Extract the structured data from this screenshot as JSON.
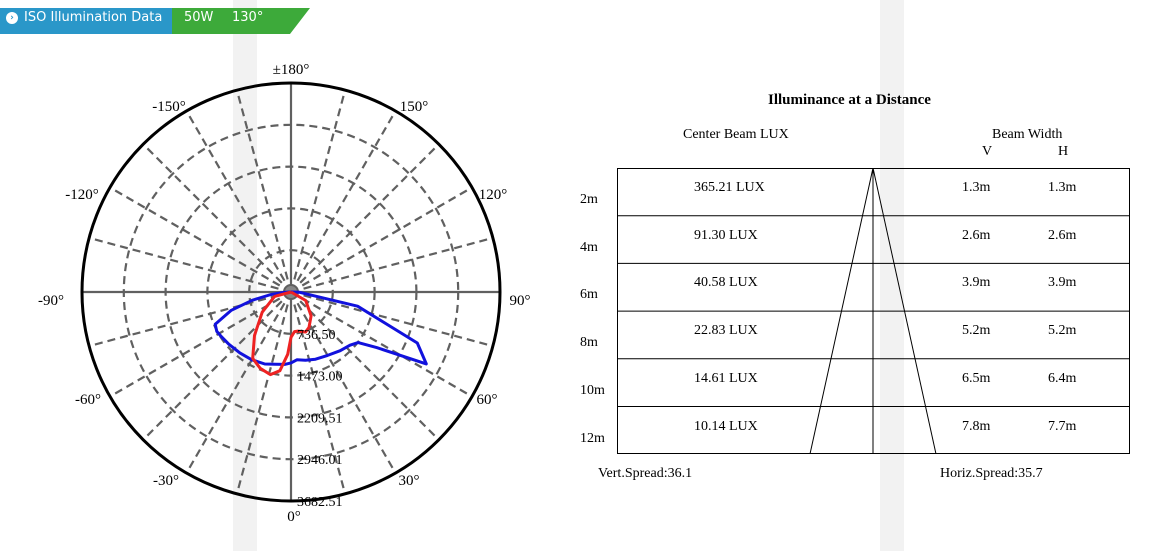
{
  "header": {
    "title": "ISO Illumination  Data",
    "power": "50W",
    "angle": "130°",
    "colors": {
      "accent_blue": "#2a97c9",
      "accent_green": "#3daa3a"
    }
  },
  "chart_data": [
    {
      "type": "polar",
      "angle_labels": [
        "±180°",
        "150°",
        "120°",
        "90°",
        "60°",
        "30°",
        "0°",
        "-30°",
        "-60°",
        "-90°",
        "-120°",
        "-150°"
      ],
      "radial_max": 3682.51,
      "radial_labels": [
        "736.50",
        "1473.00",
        "2209.51",
        "2946.01",
        "3682.51"
      ],
      "series": [
        {
          "color": "#1111dd",
          "r": [
            0,
            120,
            355,
            700,
            1100,
            1450,
            1480,
            1460,
            1430,
            1400,
            1380,
            1350,
            1300,
            1280,
            1250,
            1200,
            1230,
            1260,
            1290,
            1350,
            1400,
            1480,
            1800,
            2700,
            2400,
            1200,
            150,
            0
          ],
          "theta": [
            -90,
            -87,
            -83,
            -78,
            -73,
            -67,
            -62,
            -58,
            -50,
            -40,
            -30,
            -20,
            -12,
            -5,
            0,
            5,
            12,
            20,
            30,
            40,
            48,
            53,
            57,
            62,
            68,
            78,
            88,
            90
          ]
        },
        {
          "color": "#ee2222",
          "r": [
            0,
            300,
            620,
            1000,
            1350,
            1450,
            1500,
            1400,
            1100,
            800,
            700,
            700,
            720,
            750,
            700,
            550,
            300,
            0
          ],
          "theta": [
            -90,
            -75,
            -55,
            -40,
            -30,
            -22,
            -14,
            -8,
            -3,
            0,
            5,
            10,
            15,
            20,
            27,
            40,
            60,
            90
          ]
        }
      ]
    },
    {
      "type": "table",
      "title": "Illuminance at a Distance",
      "col_headers": {
        "center": "Center Beam LUX",
        "beam": "Beam Width",
        "v": "V",
        "h": "H"
      },
      "rows": [
        {
          "dist": "2m",
          "lux": "365.21 LUX",
          "v": "1.3m",
          "h": "1.3m"
        },
        {
          "dist": "4m",
          "lux": "91.30 LUX",
          "v": "2.6m",
          "h": "2.6m"
        },
        {
          "dist": "6m",
          "lux": "40.58 LUX",
          "v": "3.9m",
          "h": "3.9m"
        },
        {
          "dist": "8m",
          "lux": "22.83 LUX",
          "v": "5.2m",
          "h": "5.2m"
        },
        {
          "dist": "10m",
          "lux": "14.61 LUX",
          "v": "6.5m",
          "h": "6.4m"
        },
        {
          "dist": "12m",
          "lux": "10.14 LUX",
          "v": "7.8m",
          "h": "7.7m"
        }
      ],
      "vert_spread": "Vert.Spread:36.1",
      "horiz_spread": "Horiz.Spread:35.7"
    }
  ]
}
